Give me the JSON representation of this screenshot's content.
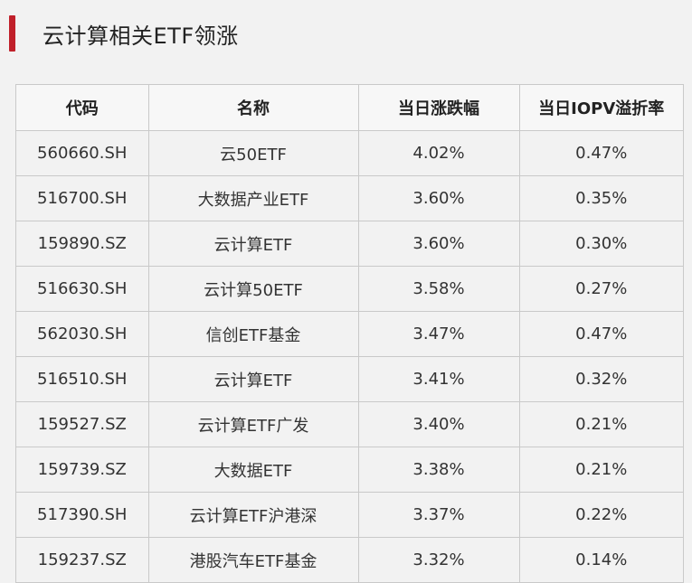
{
  "title": "云计算相关ETF领涨",
  "table": {
    "headers": [
      "代码",
      "名称",
      "当日涨跌幅",
      "当日IOPV溢折率"
    ],
    "rows": [
      {
        "code": "560660.SH",
        "name": "云50ETF",
        "change": "4.02%",
        "premium": "0.47%"
      },
      {
        "code": "516700.SH",
        "name": "大数据产业ETF",
        "change": "3.60%",
        "premium": "0.35%"
      },
      {
        "code": "159890.SZ",
        "name": "云计算ETF",
        "change": "3.60%",
        "premium": "0.30%"
      },
      {
        "code": "516630.SH",
        "name": "云计算50ETF",
        "change": "3.58%",
        "premium": "0.27%"
      },
      {
        "code": "562030.SH",
        "name": "信创ETF基金",
        "change": "3.47%",
        "premium": "0.47%"
      },
      {
        "code": "516510.SH",
        "name": "云计算ETF",
        "change": "3.41%",
        "premium": "0.32%"
      },
      {
        "code": "159527.SZ",
        "name": "云计算ETF广发",
        "change": "3.40%",
        "premium": "0.21%"
      },
      {
        "code": "159739.SZ",
        "name": "大数据ETF",
        "change": "3.38%",
        "premium": "0.21%"
      },
      {
        "code": "517390.SH",
        "name": "云计算ETF沪港深",
        "change": "3.37%",
        "premium": "0.22%"
      },
      {
        "code": "159237.SZ",
        "name": "港股汽车ETF基金",
        "change": "3.32%",
        "premium": "0.14%"
      }
    ]
  },
  "colors": {
    "accent": "#c0202a"
  }
}
